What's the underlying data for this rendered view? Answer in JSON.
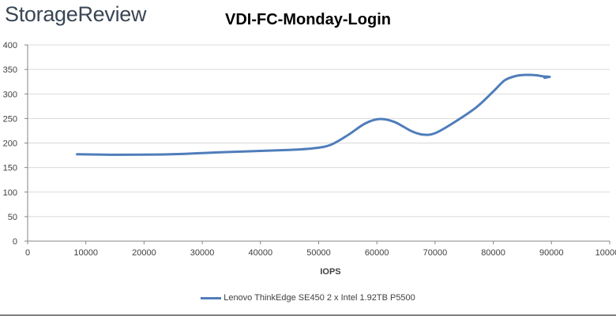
{
  "brand": {
    "logo_text": "StorageReview"
  },
  "chart_data": {
    "type": "line",
    "title": "VDI-FC-Monday-Login",
    "xlabel": "IOPS",
    "ylabel": "",
    "xlim": [
      0,
      100000
    ],
    "ylim": [
      0,
      400
    ],
    "x_ticks": [
      0,
      10000,
      20000,
      30000,
      40000,
      50000,
      60000,
      70000,
      80000,
      90000,
      100000
    ],
    "y_ticks": [
      0,
      50,
      100,
      150,
      200,
      250,
      300,
      350,
      400
    ],
    "x_tick_labels": [
      "0",
      "10000",
      "20000",
      "30000",
      "40000",
      "50000",
      "60000",
      "70000",
      "80000",
      "90000",
      "100000"
    ],
    "y_tick_labels": [
      "0",
      "50",
      "100",
      "150",
      "200",
      "250",
      "300",
      "350",
      "400"
    ],
    "grid": {
      "horizontal": true,
      "vertical": false
    },
    "legend_position": "bottom",
    "series": [
      {
        "name": "Lenovo ThinkEdge SE450 2 x Intel 1.92TB P5500",
        "color": "#4f7dba",
        "points": [
          [
            8500,
            177
          ],
          [
            12000,
            176.5
          ],
          [
            16000,
            176
          ],
          [
            22000,
            176.5
          ],
          [
            27000,
            178
          ],
          [
            33000,
            181
          ],
          [
            40000,
            184
          ],
          [
            45000,
            186
          ],
          [
            49000,
            189
          ],
          [
            52000,
            196
          ],
          [
            55000,
            216
          ],
          [
            58000,
            240
          ],
          [
            60500,
            249
          ],
          [
            63000,
            243
          ],
          [
            66000,
            224
          ],
          [
            68000,
            217
          ],
          [
            70000,
            220
          ],
          [
            73000,
            240
          ],
          [
            77000,
            272
          ],
          [
            80000,
            305
          ],
          [
            82000,
            328
          ],
          [
            84000,
            337
          ],
          [
            86000,
            339
          ],
          [
            87500,
            338
          ],
          [
            88500,
            336
          ],
          [
            89500,
            335
          ],
          [
            88800,
            333
          ],
          [
            89200,
            334
          ],
          [
            89700,
            335
          ]
        ]
      }
    ]
  }
}
